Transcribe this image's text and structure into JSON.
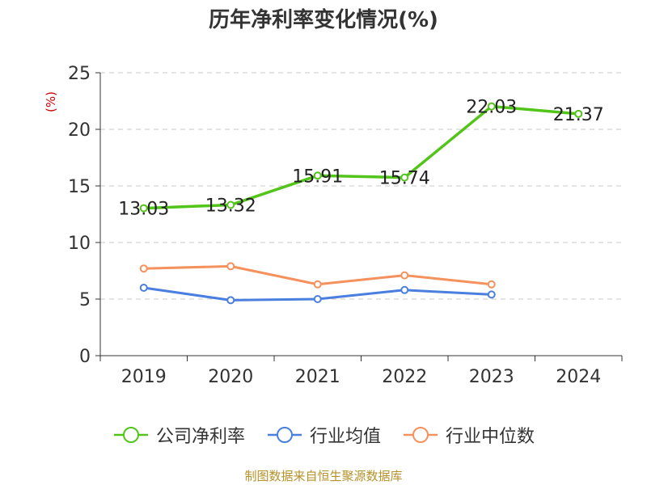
{
  "chart_data": {
    "type": "line",
    "title": "历年净利率变化情况(%)",
    "ylabel": "(%)",
    "xlabel": "",
    "categories": [
      "2019",
      "2020",
      "2021",
      "2022",
      "2023",
      "2024"
    ],
    "ylim": [
      0,
      25
    ],
    "yticks": [
      0,
      5,
      10,
      15,
      20,
      25
    ],
    "grid": true,
    "legend_position": "bottom",
    "series": [
      {
        "name": "公司净利率",
        "color": "#52c41a",
        "values": [
          13.03,
          13.32,
          15.91,
          15.74,
          22.03,
          21.37
        ],
        "labels": [
          "13.03",
          "13.32",
          "15.91",
          "15.74",
          "22.03",
          "21.37"
        ]
      },
      {
        "name": "行业均值",
        "color": "#4a7fe0",
        "values": [
          6.0,
          4.9,
          5.0,
          5.8,
          5.4,
          null
        ]
      },
      {
        "name": "行业中位数",
        "color": "#f5915c",
        "values": [
          7.7,
          7.9,
          6.3,
          7.1,
          6.3,
          null
        ]
      }
    ]
  },
  "source_text": "制图数据来自恒生聚源数据库"
}
